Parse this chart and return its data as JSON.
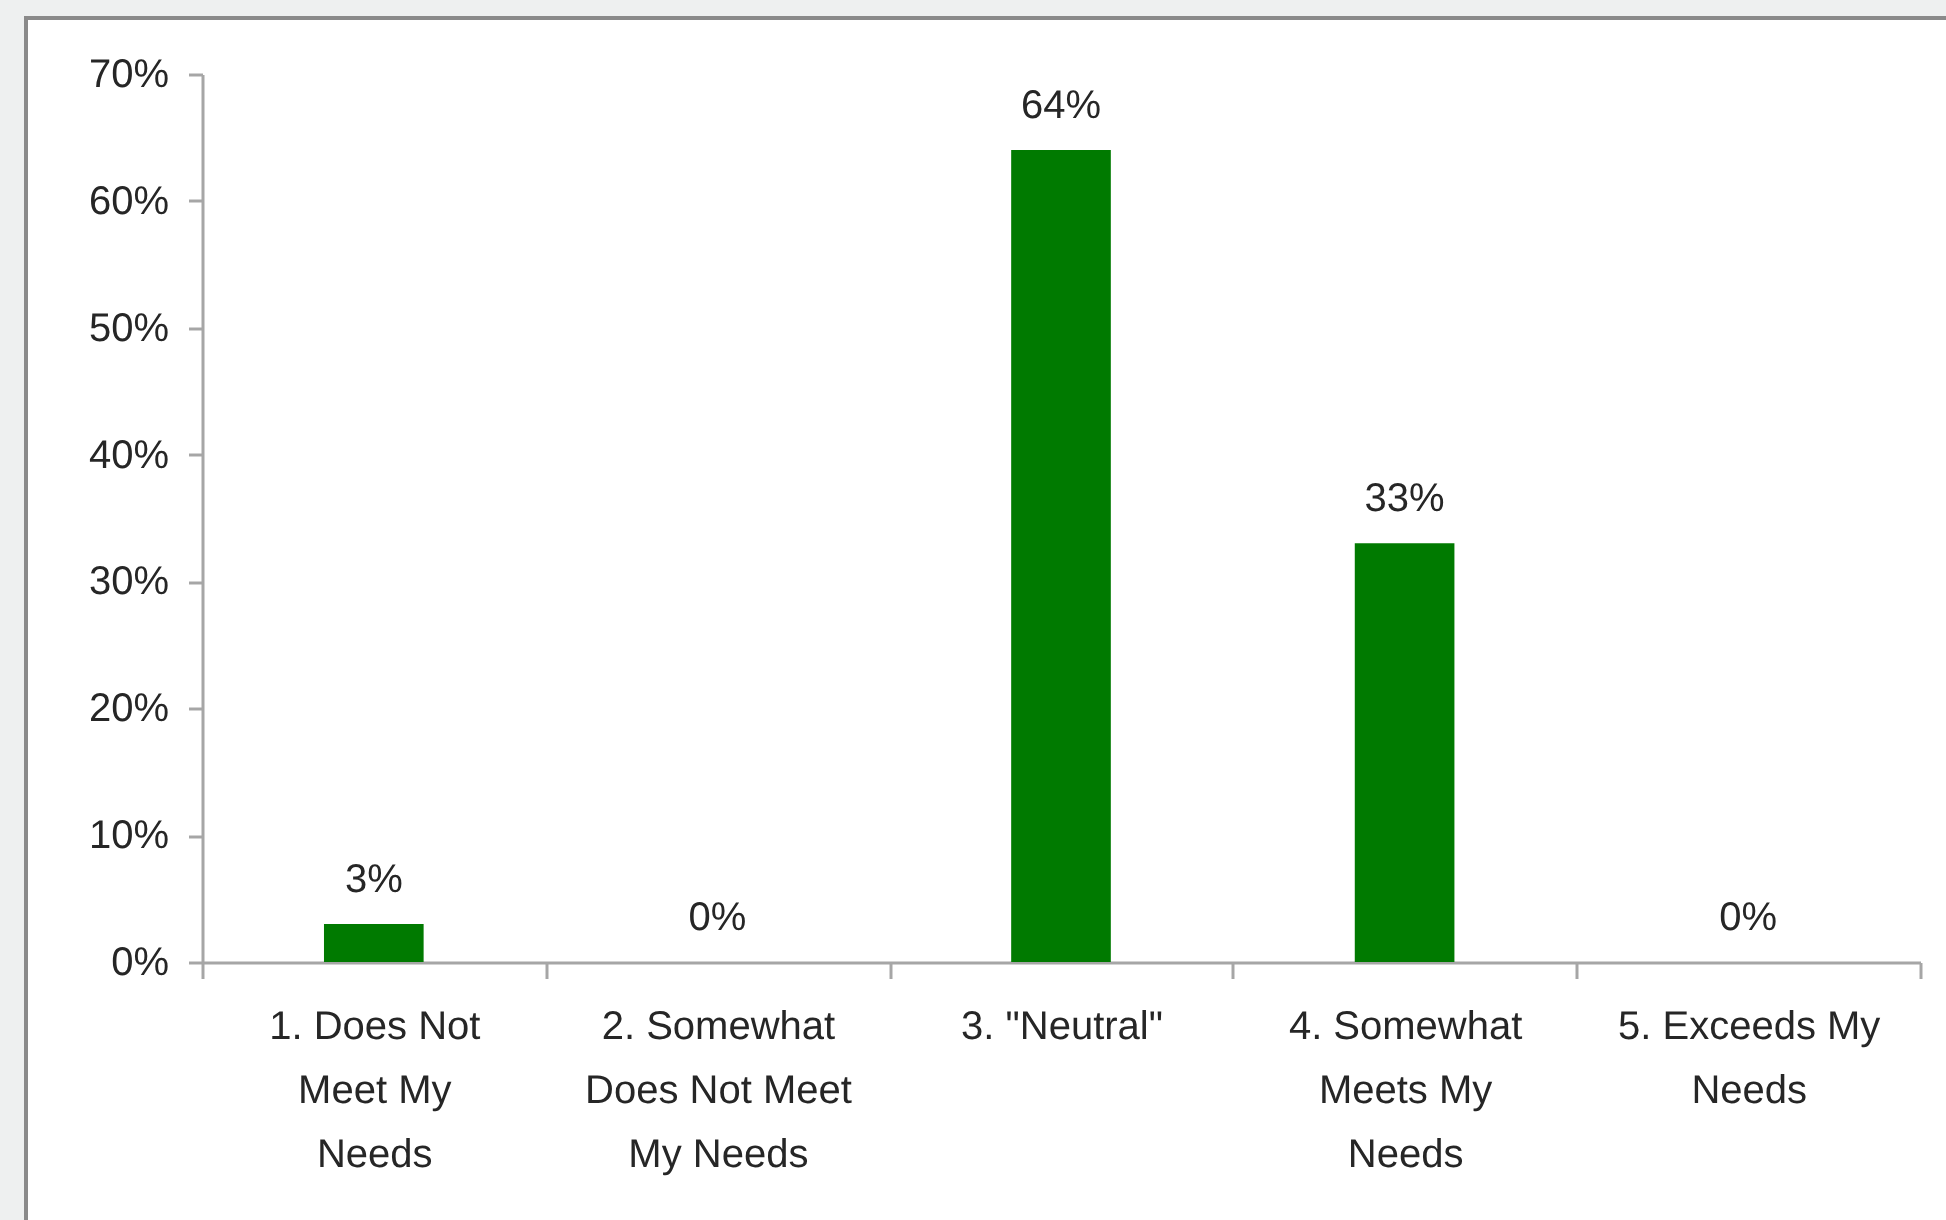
{
  "chart_data": {
    "type": "bar",
    "categories": [
      "1. Does Not Meet My Needs",
      "2. Somewhat Does Not Meet My Needs",
      "3. \"Neutral\"",
      "4. Somewhat Meets My Needs",
      "5. Exceeds My Needs"
    ],
    "values": [
      3,
      0,
      64,
      33,
      0
    ],
    "value_labels": [
      "3%",
      "0%",
      "64%",
      "33%",
      "0%"
    ],
    "color": "#007a00",
    "ylim": [
      0,
      70
    ],
    "yticks": [
      {
        "value": 0,
        "label": "0%"
      },
      {
        "value": 10,
        "label": "10%"
      },
      {
        "value": 20,
        "label": "20%"
      },
      {
        "value": 30,
        "label": "30%"
      },
      {
        "value": 40,
        "label": "40%"
      },
      {
        "value": 50,
        "label": "50%"
      },
      {
        "value": 60,
        "label": "60%"
      },
      {
        "value": 70,
        "label": "70%"
      }
    ]
  }
}
